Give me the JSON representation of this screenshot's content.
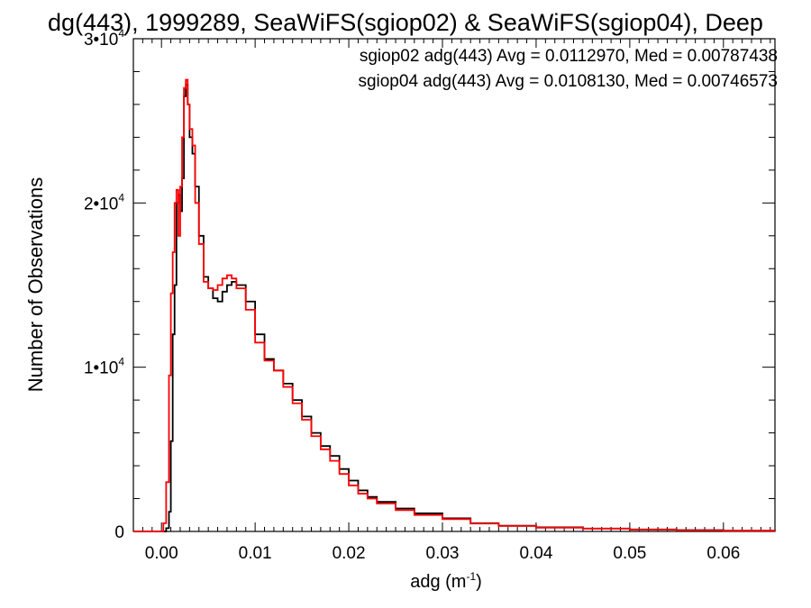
{
  "chart_data": {
    "type": "line",
    "title": "dg(443), 1999289, SeaWiFS(sgiop02) & SeaWiFS(sgiop04), Deep",
    "xlabel_base": "adg (m",
    "xlabel_sup": "-1",
    "xlabel_close": ")",
    "ylabel": "Number of Observations",
    "xlim": [
      -0.003,
      0.0655
    ],
    "ylim": [
      0,
      30000
    ],
    "x_ticks": [
      {
        "value": 0.0,
        "label": "0.00"
      },
      {
        "value": 0.01,
        "label": "0.01"
      },
      {
        "value": 0.02,
        "label": "0.02"
      },
      {
        "value": 0.03,
        "label": "0.03"
      },
      {
        "value": 0.04,
        "label": "0.04"
      },
      {
        "value": 0.05,
        "label": "0.05"
      },
      {
        "value": 0.06,
        "label": "0.06"
      }
    ],
    "y_ticks": [
      {
        "value": 0,
        "base": "0",
        "exp": ""
      },
      {
        "value": 10000,
        "base": "1•10",
        "exp": "4"
      },
      {
        "value": 20000,
        "base": "2•10",
        "exp": "4"
      },
      {
        "value": 30000,
        "base": "3•10",
        "exp": "4"
      }
    ],
    "grid": false,
    "series": [
      {
        "name": "sgiop02",
        "color": "#000000",
        "legend": "sgiop02 adg(443) Avg = 0.0112970, Med = 0.00787438",
        "points": [
          [
            -0.003,
            0
          ],
          [
            0.0,
            0
          ],
          [
            0.0005,
            200
          ],
          [
            0.0008,
            1200
          ],
          [
            0.001,
            5500
          ],
          [
            0.0012,
            12000
          ],
          [
            0.0014,
            15000
          ],
          [
            0.0016,
            20000
          ],
          [
            0.0018,
            20500
          ],
          [
            0.002,
            19500
          ],
          [
            0.0022,
            21500
          ],
          [
            0.0024,
            26500
          ],
          [
            0.0026,
            27200
          ],
          [
            0.0028,
            26000
          ],
          [
            0.003,
            24000
          ],
          [
            0.0033,
            23000
          ],
          [
            0.0036,
            21000
          ],
          [
            0.004,
            18000
          ],
          [
            0.0045,
            15500
          ],
          [
            0.005,
            14800
          ],
          [
            0.0055,
            14200
          ],
          [
            0.006,
            14000
          ],
          [
            0.0065,
            14600
          ],
          [
            0.007,
            15000
          ],
          [
            0.0075,
            15200
          ],
          [
            0.008,
            15000
          ],
          [
            0.009,
            14000
          ],
          [
            0.01,
            12000
          ],
          [
            0.011,
            10500
          ],
          [
            0.012,
            9800
          ],
          [
            0.013,
            9000
          ],
          [
            0.014,
            8000
          ],
          [
            0.015,
            7000
          ],
          [
            0.016,
            6000
          ],
          [
            0.017,
            5200
          ],
          [
            0.018,
            4600
          ],
          [
            0.019,
            3800
          ],
          [
            0.02,
            3100
          ],
          [
            0.021,
            2500
          ],
          [
            0.022,
            2100
          ],
          [
            0.023,
            1800
          ],
          [
            0.025,
            1400
          ],
          [
            0.027,
            1100
          ],
          [
            0.03,
            800
          ],
          [
            0.033,
            500
          ],
          [
            0.036,
            350
          ],
          [
            0.04,
            250
          ],
          [
            0.045,
            180
          ],
          [
            0.05,
            120
          ],
          [
            0.055,
            80
          ],
          [
            0.06,
            50
          ],
          [
            0.0655,
            30
          ]
        ]
      },
      {
        "name": "sgiop04",
        "color": "#ff0000",
        "legend": "sgiop04 adg(443) Avg = 0.0108130, Med = 0.00746573",
        "points": [
          [
            -0.003,
            0
          ],
          [
            0.0,
            0
          ],
          [
            0.0002,
            500
          ],
          [
            0.0005,
            3000
          ],
          [
            0.0008,
            9500
          ],
          [
            0.001,
            14500
          ],
          [
            0.0012,
            17000
          ],
          [
            0.0014,
            20000
          ],
          [
            0.0016,
            20800
          ],
          [
            0.0018,
            18000
          ],
          [
            0.002,
            21000
          ],
          [
            0.0022,
            24000
          ],
          [
            0.0024,
            27000
          ],
          [
            0.0026,
            27500
          ],
          [
            0.0028,
            26000
          ],
          [
            0.003,
            24500
          ],
          [
            0.0033,
            23500
          ],
          [
            0.0036,
            20000
          ],
          [
            0.004,
            17500
          ],
          [
            0.0045,
            15200
          ],
          [
            0.005,
            14800
          ],
          [
            0.0055,
            14700
          ],
          [
            0.006,
            15000
          ],
          [
            0.0065,
            15400
          ],
          [
            0.007,
            15600
          ],
          [
            0.0075,
            15400
          ],
          [
            0.008,
            14800
          ],
          [
            0.009,
            13500
          ],
          [
            0.01,
            11500
          ],
          [
            0.011,
            10400
          ],
          [
            0.012,
            9800
          ],
          [
            0.013,
            8800
          ],
          [
            0.014,
            7800
          ],
          [
            0.015,
            6800
          ],
          [
            0.016,
            5800
          ],
          [
            0.017,
            5000
          ],
          [
            0.018,
            4300
          ],
          [
            0.019,
            3500
          ],
          [
            0.02,
            2800
          ],
          [
            0.021,
            2300
          ],
          [
            0.022,
            2000
          ],
          [
            0.023,
            1700
          ],
          [
            0.025,
            1300
          ],
          [
            0.027,
            1000
          ],
          [
            0.03,
            750
          ],
          [
            0.033,
            480
          ],
          [
            0.036,
            330
          ],
          [
            0.04,
            230
          ],
          [
            0.045,
            170
          ],
          [
            0.05,
            110
          ],
          [
            0.055,
            70
          ],
          [
            0.06,
            45
          ],
          [
            0.0655,
            25
          ]
        ]
      }
    ]
  }
}
